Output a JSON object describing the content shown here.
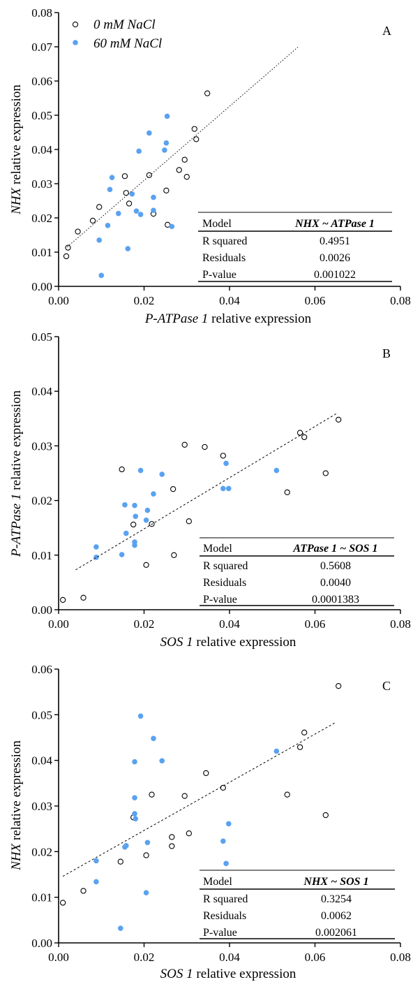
{
  "colors": {
    "open_marker": "#000000",
    "filled_marker": "#5aa2f0",
    "axis": "#000000"
  },
  "legend": {
    "series": [
      {
        "name": "0 mM NaCl",
        "marker": "open-circle"
      },
      {
        "name": "60 mM NaCl",
        "marker": "filled-circle"
      }
    ]
  },
  "chart_data": [
    {
      "type": "scatter",
      "panel_label": "A",
      "xlabel_italic": "P-ATPase 1",
      "xlabel_rest": " relative expression",
      "ylabel_italic": "NHX",
      "ylabel_rest": " relative expression",
      "xlim": [
        0,
        0.08
      ],
      "ylim": [
        0,
        0.08
      ],
      "x_ticks": [
        "0.00",
        "0.02",
        "0.04",
        "0.06",
        "0.08"
      ],
      "y_ticks": [
        "0.00",
        "0.01",
        "0.02",
        "0.03",
        "0.04",
        "0.05",
        "0.06",
        "0.07",
        "0.08"
      ],
      "x_tick_values": [
        0,
        0.02,
        0.04,
        0.06,
        0.08
      ],
      "y_tick_values": [
        0,
        0.01,
        0.02,
        0.03,
        0.04,
        0.05,
        0.06,
        0.07,
        0.08
      ],
      "trendline": {
        "style": "dotted",
        "x": [
          0.002,
          0.056
        ],
        "y": [
          0.0115,
          0.0699
        ]
      },
      "series": [
        {
          "name": "0 mM NaCl",
          "points": [
            [
              0.0018,
              0.0088
            ],
            [
              0.0022,
              0.0113
            ],
            [
              0.0045,
              0.016
            ],
            [
              0.008,
              0.0192
            ],
            [
              0.0095,
              0.0232
            ],
            [
              0.0155,
              0.0322
            ],
            [
              0.0158,
              0.0273
            ],
            [
              0.0165,
              0.0242
            ],
            [
              0.0212,
              0.0325
            ],
            [
              0.0222,
              0.0212
            ],
            [
              0.0252,
              0.028
            ],
            [
              0.0255,
              0.018
            ],
            [
              0.0282,
              0.034
            ],
            [
              0.0295,
              0.037
            ],
            [
              0.03,
              0.032
            ],
            [
              0.0318,
              0.046
            ],
            [
              0.0322,
              0.043
            ],
            [
              0.0348,
              0.0564
            ]
          ]
        },
        {
          "name": "60 mM NaCl",
          "points": [
            [
              0.0095,
              0.0135
            ],
            [
              0.01,
              0.0032
            ],
            [
              0.0115,
              0.0178
            ],
            [
              0.012,
              0.0283
            ],
            [
              0.0125,
              0.0318
            ],
            [
              0.014,
              0.0213
            ],
            [
              0.0162,
              0.011
            ],
            [
              0.0172,
              0.027
            ],
            [
              0.0182,
              0.022
            ],
            [
              0.0188,
              0.0395
            ],
            [
              0.0192,
              0.021
            ],
            [
              0.0212,
              0.0448
            ],
            [
              0.0222,
              0.0222
            ],
            [
              0.0222,
              0.026
            ],
            [
              0.0248,
              0.0398
            ],
            [
              0.0252,
              0.0419
            ],
            [
              0.0254,
              0.0497
            ],
            [
              0.0265,
              0.0175
            ]
          ]
        }
      ],
      "table": {
        "model": "NHX ~ ATPase 1",
        "r_squared": "0.4951",
        "residuals": "0.0026",
        "p_value": "0.001022"
      }
    },
    {
      "type": "scatter",
      "panel_label": "B",
      "xlabel_italic": "SOS 1",
      "xlabel_rest": " relative expression",
      "ylabel_italic": "P-ATPase 1",
      "ylabel_rest": "  relative expression",
      "xlim": [
        0,
        0.08
      ],
      "ylim": [
        0,
        0.05
      ],
      "x_ticks": [
        "0.00",
        "0.02",
        "0.04",
        "0.06",
        "0.08"
      ],
      "y_ticks": [
        "0.00",
        "0.01",
        "0.02",
        "0.03",
        "0.04",
        "0.05"
      ],
      "x_tick_values": [
        0,
        0.02,
        0.04,
        0.06,
        0.08
      ],
      "y_tick_values": [
        0,
        0.01,
        0.02,
        0.03,
        0.04,
        0.05
      ],
      "trendline": {
        "style": "dashed",
        "x": [
          0.004,
          0.065
        ],
        "y": [
          0.0073,
          0.0359
        ]
      },
      "series": [
        {
          "name": "0 mM NaCl",
          "points": [
            [
              0.001,
              0.0018
            ],
            [
              0.0058,
              0.0022
            ],
            [
              0.0148,
              0.0257
            ],
            [
              0.0175,
              0.0156
            ],
            [
              0.0205,
              0.0082
            ],
            [
              0.0218,
              0.0157
            ],
            [
              0.0268,
              0.0221
            ],
            [
              0.027,
              0.01
            ],
            [
              0.0295,
              0.0302
            ],
            [
              0.0305,
              0.0162
            ],
            [
              0.0342,
              0.0298
            ],
            [
              0.0385,
              0.0282
            ],
            [
              0.0535,
              0.0215
            ],
            [
              0.0565,
              0.0324
            ],
            [
              0.0575,
              0.0316
            ],
            [
              0.0625,
              0.025
            ],
            [
              0.0655,
              0.0348
            ]
          ]
        },
        {
          "name": "60 mM NaCl",
          "points": [
            [
              0.0088,
              0.0115
            ],
            [
              0.0088,
              0.0096
            ],
            [
              0.0148,
              0.0101
            ],
            [
              0.0155,
              0.0192
            ],
            [
              0.0158,
              0.014
            ],
            [
              0.0178,
              0.0191
            ],
            [
              0.0178,
              0.0118
            ],
            [
              0.0178,
              0.0124
            ],
            [
              0.018,
              0.0171
            ],
            [
              0.0192,
              0.0255
            ],
            [
              0.0205,
              0.0164
            ],
            [
              0.0208,
              0.0182
            ],
            [
              0.0222,
              0.0212
            ],
            [
              0.0242,
              0.0248
            ],
            [
              0.0385,
              0.0222
            ],
            [
              0.0392,
              0.0268
            ],
            [
              0.0398,
              0.0222
            ],
            [
              0.051,
              0.0255
            ]
          ]
        }
      ],
      "table": {
        "model": "ATPase 1 ~ SOS 1",
        "r_squared": "0.5608",
        "residuals": "0.0040",
        "p_value": "0.0001383"
      }
    },
    {
      "type": "scatter",
      "panel_label": "C",
      "xlabel_italic": "SOS 1",
      "xlabel_rest": " relative expression",
      "ylabel_italic": "NHX",
      "ylabel_rest": " relative expression",
      "xlim": [
        0,
        0.08
      ],
      "ylim": [
        0,
        0.06
      ],
      "x_ticks": [
        "0.00",
        "0.02",
        "0.04",
        "0.06",
        "0.08"
      ],
      "y_ticks": [
        "0.00",
        "0.01",
        "0.02",
        "0.03",
        "0.04",
        "0.05",
        "0.06"
      ],
      "x_tick_values": [
        0,
        0.02,
        0.04,
        0.06,
        0.08
      ],
      "y_tick_values": [
        0,
        0.01,
        0.02,
        0.03,
        0.04,
        0.05,
        0.06
      ],
      "trendline": {
        "style": "dashed",
        "x": [
          0.001,
          0.065
        ],
        "y": [
          0.0146,
          0.0484
        ]
      },
      "series": [
        {
          "name": "0 mM NaCl",
          "points": [
            [
              0.001,
              0.0088
            ],
            [
              0.0058,
              0.0114
            ],
            [
              0.0145,
              0.0178
            ],
            [
              0.0175,
              0.0275
            ],
            [
              0.0205,
              0.0192
            ],
            [
              0.0218,
              0.0325
            ],
            [
              0.0265,
              0.0232
            ],
            [
              0.0265,
              0.0212
            ],
            [
              0.0295,
              0.0322
            ],
            [
              0.0305,
              0.024
            ],
            [
              0.0345,
              0.0372
            ],
            [
              0.0385,
              0.034
            ],
            [
              0.0535,
              0.0325
            ],
            [
              0.0565,
              0.0429
            ],
            [
              0.0575,
              0.0461
            ],
            [
              0.0625,
              0.028
            ],
            [
              0.0655,
              0.0563
            ]
          ]
        },
        {
          "name": "60 mM NaCl",
          "points": [
            [
              0.0088,
              0.018
            ],
            [
              0.0088,
              0.0134
            ],
            [
              0.0145,
              0.0032
            ],
            [
              0.0155,
              0.021
            ],
            [
              0.0158,
              0.0213
            ],
            [
              0.0178,
              0.0397
            ],
            [
              0.0178,
              0.0318
            ],
            [
              0.0178,
              0.0283
            ],
            [
              0.018,
              0.0272
            ],
            [
              0.0192,
              0.0497
            ],
            [
              0.0205,
              0.011
            ],
            [
              0.0208,
              0.022
            ],
            [
              0.0222,
              0.0448
            ],
            [
              0.0242,
              0.0399
            ],
            [
              0.0385,
              0.0223
            ],
            [
              0.0392,
              0.0174
            ],
            [
              0.0398,
              0.0261
            ],
            [
              0.051,
              0.042
            ]
          ]
        }
      ],
      "table": {
        "model": "NHX ~ SOS 1",
        "r_squared": "0.3254",
        "residuals": "0.0062",
        "p_value": "0.002061"
      }
    }
  ],
  "table_labels": {
    "model": "Model",
    "r_squared": "R squared",
    "residuals": "Residuals",
    "p_value": "P-value"
  }
}
